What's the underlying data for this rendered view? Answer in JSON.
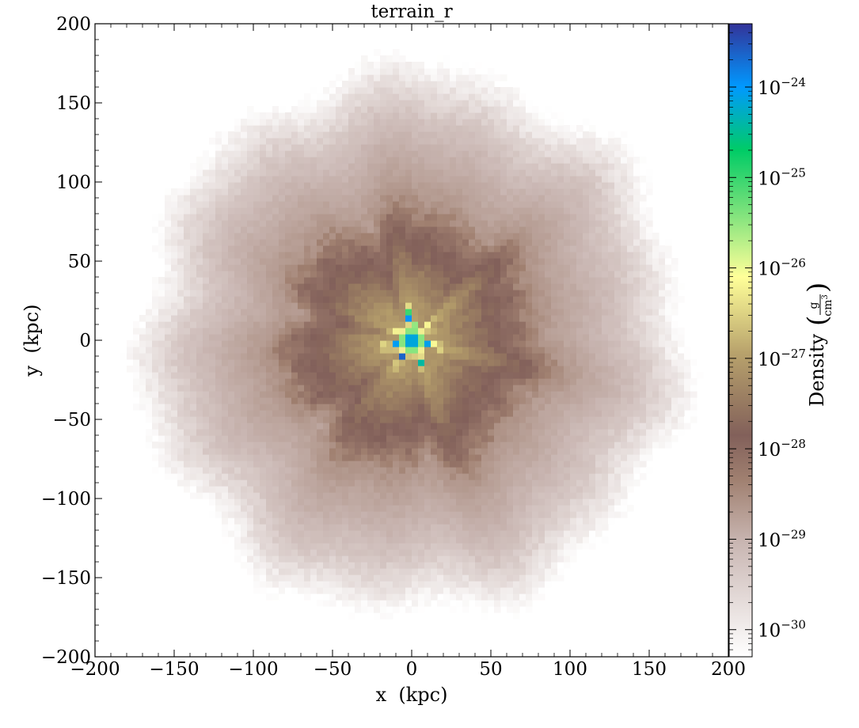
{
  "chart_data": {
    "type": "heatmap",
    "title": "terrain_r",
    "xlabel": "x  (kpc)",
    "ylabel": "y  (kpc)",
    "xlim": [
      -200,
      200
    ],
    "ylim": [
      -200,
      200
    ],
    "xticks": [
      -200,
      -150,
      -100,
      -50,
      0,
      50,
      100,
      150,
      200
    ],
    "yticks": [
      -200,
      -150,
      -100,
      -50,
      0,
      50,
      100,
      150,
      200
    ],
    "colorbar": {
      "label": "Density",
      "unit_num": "g",
      "unit_den": "cm",
      "unit_den_exp": "3",
      "scale": "log",
      "range": [
        -30.3,
        -23.3
      ],
      "tick_base": "10",
      "tick_exponents": [
        -30,
        -29,
        -28,
        -27,
        -26,
        -25,
        -24
      ],
      "colormap": "terrain_r",
      "colormap_stops": [
        {
          "t": 0.0,
          "color": "#ffffff"
        },
        {
          "t": 0.18,
          "color": "#c9b6b2"
        },
        {
          "t": 0.28,
          "color": "#a08070"
        },
        {
          "t": 0.35,
          "color": "#82605a"
        },
        {
          "t": 0.48,
          "color": "#b8a26c"
        },
        {
          "t": 0.6,
          "color": "#ffff99"
        },
        {
          "t": 0.72,
          "color": "#66dd77"
        },
        {
          "t": 0.8,
          "color": "#00cc66"
        },
        {
          "t": 0.9,
          "color": "#0099ff"
        },
        {
          "t": 1.0,
          "color": "#333399"
        }
      ]
    },
    "radial_profile": {
      "r_kpc": [
        0,
        4,
        8,
        15,
        30,
        50,
        70,
        85,
        100,
        120,
        140,
        155,
        165,
        175,
        185
      ],
      "log_density": [
        -23.6,
        -24.4,
        -26.2,
        -27.0,
        -27.3,
        -27.7,
        -28.1,
        -28.6,
        -28.8,
        -29.0,
        -29.3,
        -29.7,
        -30.0,
        -30.3,
        -30.4
      ]
    }
  }
}
